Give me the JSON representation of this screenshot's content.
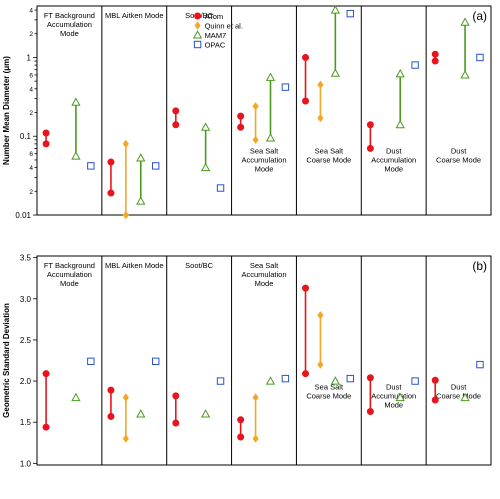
{
  "colors": {
    "ATom": "#e8141c",
    "Quinn": "#f5a623",
    "MAM7": "#4a9a1e",
    "OPAC": "#2a52c8"
  },
  "legend": [
    {
      "key": "ATom",
      "label": "ATom",
      "marker": "circle"
    },
    {
      "key": "Quinn",
      "label": "Quinn et al.",
      "marker": "diamond"
    },
    {
      "key": "MAM7",
      "label": "MAM7",
      "marker": "triangle"
    },
    {
      "key": "OPAC",
      "label": "OPAC",
      "marker": "square"
    }
  ],
  "chart_data": [
    {
      "type": "scatter",
      "panel_label": "(a)",
      "ylabel": "Number Mean Diameter (μm)",
      "yscale": "log",
      "ylim": [
        0.01,
        4.5
      ],
      "major_ticks": [
        {
          "v": 0.01,
          "label": "0.01"
        },
        {
          "v": 0.1,
          "label": "0.1"
        },
        {
          "v": 1,
          "label": "1"
        }
      ],
      "minor_ticks": [
        {
          "v": 0.02,
          "label": "2"
        },
        {
          "v": 0.03,
          "label": ""
        },
        {
          "v": 0.04,
          "label": "4"
        },
        {
          "v": 0.05,
          "label": ""
        },
        {
          "v": 0.06,
          "label": "6"
        },
        {
          "v": 0.07,
          "label": ""
        },
        {
          "v": 0.08,
          "label": ""
        },
        {
          "v": 0.09,
          "label": ""
        },
        {
          "v": 0.2,
          "label": "2"
        },
        {
          "v": 0.3,
          "label": ""
        },
        {
          "v": 0.4,
          "label": "4"
        },
        {
          "v": 0.5,
          "label": ""
        },
        {
          "v": 0.6,
          "label": "6"
        },
        {
          "v": 0.7,
          "label": ""
        },
        {
          "v": 0.8,
          "label": ""
        },
        {
          "v": 0.9,
          "label": ""
        },
        {
          "v": 2,
          "label": "2"
        },
        {
          "v": 3,
          "label": ""
        },
        {
          "v": 4,
          "label": "4"
        }
      ],
      "regions": [
        {
          "name": "FT Background Accumulation Mode",
          "label_lines": [
            "FT Background",
            "Accumulation",
            "Mode"
          ],
          "label_pos": "top",
          "series": {
            "ATom": [
              0.08,
              0.11
            ],
            "MAM7": [
              0.056,
              0.27
            ],
            "OPAC": [
              0.042
            ]
          }
        },
        {
          "name": "MBL Aitken Mode",
          "label_lines": [
            "MBL Aitken Mode"
          ],
          "label_pos": "top",
          "series": {
            "ATom": [
              0.019,
              0.047
            ],
            "Quinn": [
              0.01,
              0.08
            ],
            "MAM7": [
              0.015,
              0.053
            ],
            "OPAC": [
              0.042
            ]
          }
        },
        {
          "name": "Soot/BC",
          "label_lines": [
            "Soot/BC"
          ],
          "label_pos": "top",
          "series": {
            "ATom": [
              0.14,
              0.21
            ],
            "MAM7": [
              0.04,
              0.13
            ],
            "OPAC": [
              0.022
            ]
          }
        },
        {
          "name": "Sea Salt Accumulation Mode",
          "label_lines": [
            "Sea Salt",
            "Accumulation",
            "Mode"
          ],
          "label_pos": "middle",
          "series": {
            "ATom": [
              0.13,
              0.18
            ],
            "Quinn": [
              0.09,
              0.24
            ],
            "MAM7": [
              0.095,
              0.56
            ],
            "OPAC": [
              0.42
            ]
          }
        },
        {
          "name": "Sea Salt Coarse Mode",
          "label_lines": [
            "Sea Salt",
            "Coarse Mode"
          ],
          "label_pos": "middle",
          "series": {
            "ATom": [
              0.28,
              1.0
            ],
            "Quinn": [
              0.17,
              0.45
            ],
            "MAM7": [
              0.63,
              4.0
            ],
            "OPAC": [
              3.6
            ]
          }
        },
        {
          "name": "Dust Accumulation Mode",
          "label_lines": [
            "Dust",
            "Accumulation",
            "Mode"
          ],
          "label_pos": "middle",
          "series": {
            "ATom": [
              0.07,
              0.14
            ],
            "MAM7": [
              0.14,
              0.62
            ],
            "OPAC": [
              0.8
            ]
          }
        },
        {
          "name": "Dust Coarse Mode",
          "label_lines": [
            "Dust",
            "Coarse Mode"
          ],
          "label_pos": "middle",
          "series": {
            "ATom": [
              0.9,
              1.1
            ],
            "MAM7": [
              0.6,
              2.8
            ],
            "OPAC": [
              1.0
            ]
          }
        }
      ]
    },
    {
      "type": "scatter",
      "panel_label": "(b)",
      "ylabel": "Geometric Standard Deviation",
      "yscale": "linear",
      "ylim": [
        0.98,
        3.52
      ],
      "major_ticks": [
        {
          "v": 1.0,
          "label": "1.0"
        },
        {
          "v": 1.5,
          "label": "1.5"
        },
        {
          "v": 2.0,
          "label": "2.0"
        },
        {
          "v": 2.5,
          "label": "2.5"
        },
        {
          "v": 3.0,
          "label": "3.0"
        },
        {
          "v": 3.5,
          "label": "3.5"
        }
      ],
      "minor_ticks": [],
      "regions": [
        {
          "name": "FT Background Accumulation Mode",
          "label_lines": [
            "FT Background",
            "Accumulation",
            "Mode"
          ],
          "label_pos": "top",
          "series": {
            "ATom": [
              1.44,
              2.09
            ],
            "MAM7": [
              1.8
            ],
            "OPAC": [
              2.24
            ]
          }
        },
        {
          "name": "MBL Aitken Mode",
          "label_lines": [
            "MBL Aitken Mode"
          ],
          "label_pos": "top",
          "series": {
            "ATom": [
              1.57,
              1.89
            ],
            "Quinn": [
              1.3,
              1.8
            ],
            "MAM7": [
              1.6
            ],
            "OPAC": [
              2.24
            ]
          }
        },
        {
          "name": "Soot/BC",
          "label_lines": [
            "Soot/BC"
          ],
          "label_pos": "top",
          "series": {
            "ATom": [
              1.49,
              1.82
            ],
            "MAM7": [
              1.6
            ],
            "OPAC": [
              2.0
            ]
          }
        },
        {
          "name": "Sea Salt Accumulation Mode",
          "label_lines": [
            "Sea Salt",
            "Accumulation",
            "Mode"
          ],
          "label_pos": "top",
          "series": {
            "ATom": [
              1.32,
              1.53
            ],
            "Quinn": [
              1.3,
              1.8
            ],
            "MAM7": [
              2.0
            ],
            "OPAC": [
              2.03
            ]
          }
        },
        {
          "name": "Sea Salt Coarse Mode",
          "label_lines": [
            "Sea Salt",
            "Coarse Mode"
          ],
          "label_pos": "lower",
          "series": {
            "ATom": [
              2.09,
              3.13
            ],
            "Quinn": [
              2.2,
              2.8
            ],
            "MAM7": [
              2.0
            ],
            "OPAC": [
              2.03
            ]
          }
        },
        {
          "name": "Dust Accumulation Mode",
          "label_lines": [
            "Dust",
            "Accumulation",
            "Mode"
          ],
          "label_pos": "lower",
          "series": {
            "ATom": [
              1.63,
              2.04
            ],
            "MAM7": [
              1.8
            ],
            "OPAC": [
              2.0
            ]
          }
        },
        {
          "name": "Dust Coarse Mode",
          "label_lines": [
            "Dust",
            "Coarse Mode"
          ],
          "label_pos": "lower",
          "series": {
            "ATom": [
              1.77,
              2.01
            ],
            "MAM7": [
              1.8
            ],
            "OPAC": [
              2.2
            ]
          }
        }
      ]
    }
  ]
}
